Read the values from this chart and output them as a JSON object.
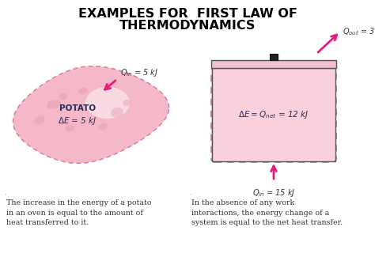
{
  "title_line1": "EXAMPLES FOR  FIRST LAW OF",
  "title_line2": "THERMODYNAMICS",
  "bg_color": "#ffffff",
  "title_color": "#000000",
  "title_fontsize": 11.5,
  "potato_color": "#f5b8c8",
  "potato_border_color": "#d4789a",
  "box_fill_color": "#f9d0dc",
  "box_border_color": "#c4708a",
  "arrow_color": "#e8197a",
  "bottom_left": "The increase in the energy of a potato\nin an oven is equal to the amount of\nheat transferred to it.",
  "bottom_right": "In the absence of any work\ninteractions, the energy change of a\nsystem is equal to the net heat transfer."
}
